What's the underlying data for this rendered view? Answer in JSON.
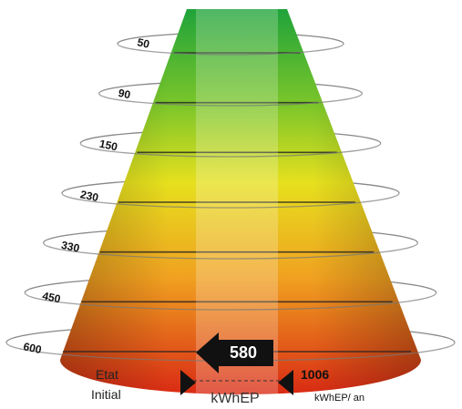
{
  "levels": [
    50,
    90,
    150,
    230,
    330,
    450,
    600
  ],
  "current": {
    "value": 580,
    "unit": "kWhEP"
  },
  "initial": {
    "label_line1": "Etat",
    "label_line2": "Initial",
    "value": 1006,
    "unit": "kWhEP/ an"
  }
}
